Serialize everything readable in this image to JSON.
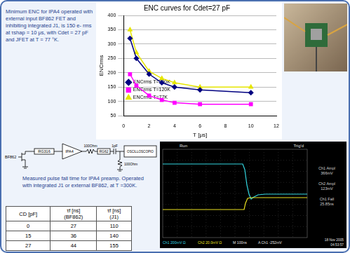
{
  "intro_text": "Minimum ENC  for IPA4 operated with external input BF862 FET and inhibiting integrated J1, is 150 e- rms  at τshap = 10 μs, with Cdet = 27 pF and JFET at T = 77 °K.",
  "chart_data": {
    "type": "line",
    "title": "ENC curves for Cdet=27 pF",
    "x_label": "T [μs]",
    "y_label": "ENCrms",
    "xlim": [
      0,
      12
    ],
    "xticks": [
      0,
      2,
      4,
      6,
      8,
      10,
      12
    ],
    "ylim": [
      50,
      400
    ],
    "yticks": [
      50,
      100,
      150,
      200,
      250,
      300,
      350,
      400
    ],
    "grid": true,
    "legend": "top-right",
    "series": [
      {
        "name": "ENCrms T=300K",
        "color": "#000080",
        "marker": "diamond",
        "line_style": "solid",
        "x": [
          0.5,
          1,
          2,
          3,
          4,
          6,
          10
        ],
        "values": [
          320,
          250,
          195,
          165,
          150,
          140,
          130
        ]
      },
      {
        "name": "ENCrms T=120K",
        "color": "#ff00ff",
        "marker": "square",
        "line_style": "solid",
        "x": [
          0.5,
          1,
          2,
          3,
          4,
          6,
          10
        ],
        "values": [
          195,
          155,
          120,
          105,
          95,
          90,
          90
        ]
      },
      {
        "name": "ENCrms T=77K",
        "color": "#e6e600",
        "marker": "triangle",
        "line_style": "solid",
        "x": [
          0.5,
          1,
          2,
          3,
          4,
          6,
          10
        ],
        "values": [
          350,
          270,
          205,
          180,
          165,
          150,
          150
        ]
      }
    ]
  },
  "diagram": {
    "nodes": [
      {
        "label": "BF862"
      },
      {
        "label": "RG316"
      },
      {
        "label": "IPA4"
      },
      {
        "label": "100Ohm"
      },
      {
        "label": "RG62"
      },
      {
        "label": "1pF"
      },
      {
        "label": "OSCILLOSCOPIO"
      },
      {
        "label": "100Ohm"
      }
    ]
  },
  "caption": "Measured pulse fall time for IPA4 preamp. Operated with integrated J1 or  external BF862, at T =300K.",
  "table": {
    "header": [
      [
        "CD [pF]"
      ],
      [
        "τf [ns]",
        "(BF862)"
      ],
      [
        "τf [ns]",
        "(J1)"
      ]
    ],
    "rows": [
      [
        0,
        27,
        110
      ],
      [
        15,
        36,
        140
      ],
      [
        27,
        44,
        155
      ]
    ]
  },
  "scope": {
    "top": [
      "Run",
      "Trig'd"
    ],
    "readouts": [
      {
        "label": "Ch1 Ampl",
        "value": "366mV"
      },
      {
        "label": "Ch2 Ampl",
        "value": "123mV"
      },
      {
        "label": "Ch1 Fall",
        "value": "25.85ns"
      }
    ],
    "bottom": [
      "Ch1 200mV Ω",
      "Ch2 20.0mV Ω",
      "M 100ns",
      "A Ch1 -252mV"
    ],
    "date": [
      "18 Nov 2005",
      "04:53:57"
    ]
  }
}
